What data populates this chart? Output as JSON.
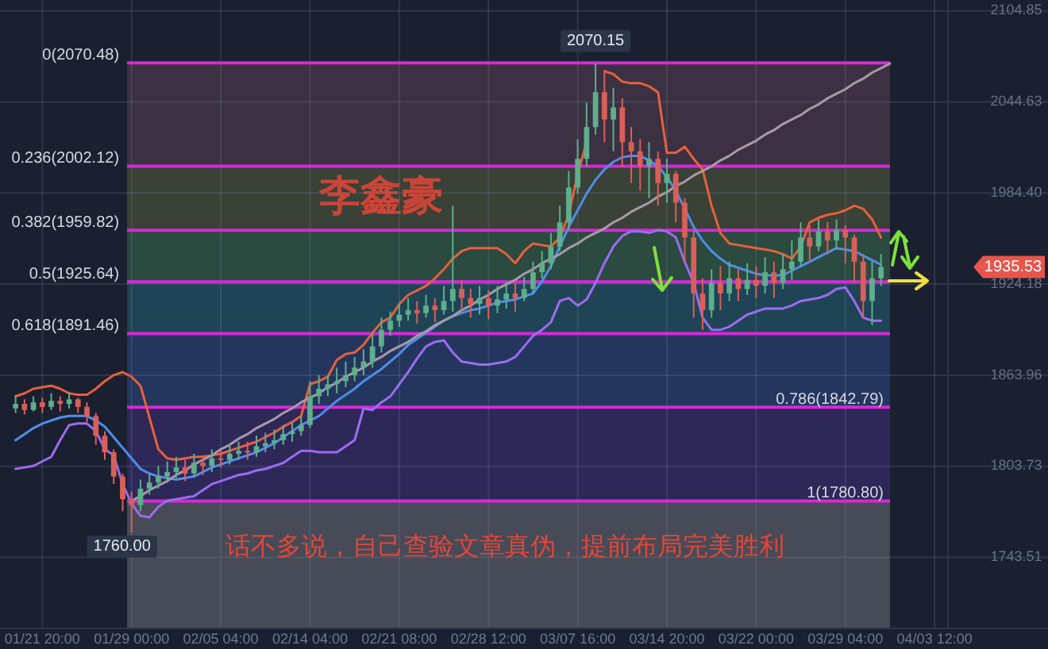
{
  "chart_data": {
    "type": "candlestick",
    "categories": [
      null,
      null,
      null,
      "01/21 20:00",
      null,
      null,
      null,
      null,
      null,
      null,
      null,
      null,
      null,
      "01/29 00:00",
      null,
      null,
      null,
      null,
      null,
      null,
      null,
      null,
      null,
      "02/05 04:00",
      null,
      null,
      null,
      null,
      null,
      null,
      null,
      null,
      null,
      "02/14 04:00",
      null,
      null,
      null,
      null,
      null,
      null,
      null,
      null,
      null,
      "02/21 08:00",
      null,
      null,
      null,
      null,
      null,
      null,
      null,
      null,
      null,
      "02/28 12:00",
      null,
      null,
      null,
      null,
      null,
      null,
      null,
      null,
      null,
      "03/07 16:00",
      null,
      null,
      null,
      null,
      null,
      null,
      null,
      null,
      null,
      "03/14 20:00",
      null,
      null,
      null,
      null,
      null,
      null,
      null,
      null,
      null,
      "03/22 00:00",
      null,
      null,
      null,
      null,
      null,
      null,
      null,
      null,
      null,
      "03/29 04:00",
      null,
      null,
      null,
      null,
      null,
      null,
      null,
      null,
      null,
      "04/03 12:00",
      null
    ],
    "ohlc": [
      [
        1842,
        1850,
        1839,
        1845
      ],
      [
        1845,
        1848,
        1838,
        1841
      ],
      [
        1841,
        1850,
        1840,
        1846
      ],
      [
        1846,
        1849,
        1839,
        1843
      ],
      [
        1843,
        1852,
        1841,
        1847
      ],
      [
        1847,
        1850,
        1840,
        1845
      ],
      [
        1845,
        1853,
        1842,
        1848
      ],
      [
        1848,
        1849,
        1839,
        1843
      ],
      [
        1843,
        1846,
        1833,
        1837
      ],
      [
        1837,
        1839,
        1818,
        1824
      ],
      [
        1824,
        1827,
        1808,
        1813
      ],
      [
        1813,
        1815,
        1792,
        1797
      ],
      [
        1797,
        1799,
        1774,
        1782
      ],
      [
        1782,
        1787,
        1760,
        1778
      ],
      [
        1778,
        1795,
        1774,
        1789
      ],
      [
        1789,
        1799,
        1785,
        1793
      ],
      [
        1793,
        1804,
        1789,
        1797
      ],
      [
        1797,
        1807,
        1793,
        1800
      ],
      [
        1800,
        1810,
        1796,
        1803
      ],
      [
        1803,
        1808,
        1794,
        1799
      ],
      [
        1799,
        1812,
        1797,
        1806
      ],
      [
        1806,
        1811,
        1798,
        1804
      ],
      [
        1804,
        1815,
        1800,
        1809
      ],
      [
        1809,
        1814,
        1803,
        1808
      ],
      [
        1808,
        1818,
        1805,
        1812
      ],
      [
        1812,
        1820,
        1808,
        1814
      ],
      [
        1814,
        1820,
        1808,
        1813
      ],
      [
        1813,
        1824,
        1810,
        1817
      ],
      [
        1817,
        1826,
        1813,
        1819
      ],
      [
        1819,
        1828,
        1815,
        1821
      ],
      [
        1821,
        1831,
        1818,
        1825
      ],
      [
        1825,
        1833,
        1820,
        1827
      ],
      [
        1827,
        1837,
        1824,
        1831
      ],
      [
        1831,
        1860,
        1829,
        1850
      ],
      [
        1850,
        1864,
        1845,
        1855
      ],
      [
        1855,
        1864,
        1850,
        1858
      ],
      [
        1858,
        1869,
        1852,
        1860
      ],
      [
        1860,
        1873,
        1856,
        1864
      ],
      [
        1864,
        1876,
        1860,
        1869
      ],
      [
        1869,
        1881,
        1864,
        1873
      ],
      [
        1873,
        1892,
        1869,
        1883
      ],
      [
        1883,
        1902,
        1879,
        1894
      ],
      [
        1894,
        1906,
        1890,
        1900
      ],
      [
        1900,
        1911,
        1896,
        1904
      ],
      [
        1904,
        1915,
        1900,
        1907
      ],
      [
        1907,
        1913,
        1898,
        1905
      ],
      [
        1905,
        1917,
        1902,
        1910
      ],
      [
        1910,
        1915,
        1899,
        1907
      ],
      [
        1907,
        1923,
        1904,
        1913
      ],
      [
        1913,
        1976,
        1906,
        1921
      ],
      [
        1921,
        1927,
        1907,
        1915
      ],
      [
        1915,
        1921,
        1902,
        1911
      ],
      [
        1911,
        1923,
        1904,
        1915
      ],
      [
        1915,
        1920,
        1901,
        1910
      ],
      [
        1910,
        1923,
        1905,
        1914
      ],
      [
        1914,
        1926,
        1908,
        1918
      ],
      [
        1918,
        1925,
        1906,
        1915
      ],
      [
        1915,
        1929,
        1913,
        1921
      ],
      [
        1921,
        1939,
        1918,
        1932
      ],
      [
        1932,
        1946,
        1928,
        1938
      ],
      [
        1938,
        1958,
        1934,
        1949
      ],
      [
        1949,
        1976,
        1946,
        1965
      ],
      [
        1965,
        1999,
        1960,
        1988
      ],
      [
        1988,
        2020,
        1984,
        2007
      ],
      [
        2007,
        2044,
        2002,
        2028
      ],
      [
        2028,
        2070.15,
        2023,
        2051
      ],
      [
        2051,
        2065,
        2018,
        2033
      ],
      [
        2033,
        2054,
        2012,
        2041
      ],
      [
        2041,
        2047,
        2002,
        2018
      ],
      [
        2018,
        2028,
        1991,
        2012
      ],
      [
        2012,
        2020,
        1986,
        2002
      ],
      [
        2002,
        2018,
        1981,
        2007
      ],
      [
        2007,
        2012,
        1976,
        1991
      ],
      [
        1991,
        2007,
        1978,
        1997
      ],
      [
        1997,
        1999,
        1965,
        1978
      ],
      [
        1978,
        1981,
        1939,
        1955
      ],
      [
        1955,
        1960,
        1902,
        1918
      ],
      [
        1918,
        1928,
        1894,
        1907
      ],
      [
        1907,
        1934,
        1902,
        1925
      ],
      [
        1925,
        1936,
        1907,
        1918
      ],
      [
        1918,
        1939,
        1913,
        1928
      ],
      [
        1928,
        1934,
        1913,
        1921
      ],
      [
        1921,
        1938,
        1917,
        1927
      ],
      [
        1927,
        1936,
        1915,
        1923
      ],
      [
        1923,
        1942,
        1918,
        1932
      ],
      [
        1932,
        1939,
        1915,
        1925
      ],
      [
        1925,
        1944,
        1921,
        1934
      ],
      [
        1934,
        1953,
        1927,
        1939
      ],
      [
        1939,
        1965,
        1936,
        1955
      ],
      [
        1955,
        1963,
        1939,
        1949
      ],
      [
        1949,
        1967,
        1946,
        1959
      ],
      [
        1959,
        1965,
        1944,
        1953
      ],
      [
        1953,
        1967,
        1947,
        1960
      ],
      [
        1960,
        1963,
        1938,
        1955
      ],
      [
        1955,
        1957,
        1925,
        1939
      ],
      [
        1939,
        1944,
        1902,
        1913
      ],
      [
        1913,
        1939,
        1897,
        1928
      ],
      [
        1928,
        1944,
        1923,
        1935.53
      ],
      null,
      null,
      null,
      null,
      null,
      null,
      null
    ],
    "colors": [
      "#5fae8c",
      "#d9605a",
      "#5fae8c",
      "#d9605a",
      "#5fae8c",
      "#d9605a",
      "#5fae8c",
      "#d9605a",
      "#d9605a",
      "#d9605a",
      "#d9605a",
      "#d9605a",
      "#d9605a",
      "#d9605a",
      "#5fae8c",
      "#5fae8c",
      "#5fae8c",
      "#5fae8c",
      "#5fae8c",
      "#d9605a",
      "#5fae8c",
      "#d9605a",
      "#5fae8c",
      "#d9605a",
      "#5fae8c",
      "#5fae8c",
      "#d9605a",
      "#5fae8c",
      "#5fae8c",
      "#5fae8c",
      "#5fae8c",
      "#5fae8c",
      "#5fae8c",
      "#5fae8c",
      "#5fae8c",
      "#5fae8c",
      "#5fae8c",
      "#5fae8c",
      "#5fae8c",
      "#5fae8c",
      "#5fae8c",
      "#5fae8c",
      "#5fae8c",
      "#5fae8c",
      "#5fae8c",
      "#d9605a",
      "#5fae8c",
      "#d9605a",
      "#5fae8c",
      "#5fae8c",
      "#d9605a",
      "#d9605a",
      "#5fae8c",
      "#d9605a",
      "#5fae8c",
      "#5fae8c",
      "#d9605a",
      "#5fae8c",
      "#5fae8c",
      "#5fae8c",
      "#5fae8c",
      "#5fae8c",
      "#5fae8c",
      "#5fae8c",
      "#5fae8c",
      "#5fae8c",
      "#d9605a",
      "#5fae8c",
      "#d9605a",
      "#d9605a",
      "#d9605a",
      "#5fae8c",
      "#d9605a",
      "#5fae8c",
      "#d9605a",
      "#d9605a",
      "#d9605a",
      "#d9605a",
      "#5fae8c",
      "#d9605a",
      "#5fae8c",
      "#d9605a",
      "#5fae8c",
      "#d9605a",
      "#5fae8c",
      "#d9605a",
      "#5fae8c",
      "#5fae8c",
      "#5fae8c",
      "#d9605a",
      "#5fae8c",
      "#d9605a",
      "#5fae8c",
      "#d9605a",
      "#d9605a",
      "#d9605a",
      "#5fae8c",
      "#5fae8c",
      null,
      null,
      null,
      null,
      null,
      null,
      null
    ],
    "series": [
      {
        "type": "line",
        "color": "#e8603c",
        "values": [
          1850,
          1852,
          1855,
          1856,
          1857,
          1855,
          1852,
          1851,
          1851,
          1855,
          1860,
          1864,
          1866,
          1863,
          1857,
          1836,
          1815,
          1809,
          1808,
          1809,
          1810,
          1810,
          1811,
          1812,
          1814,
          1816,
          1818,
          1820,
          1823,
          1826,
          1830,
          1833,
          1837,
          1858,
          1860,
          1863,
          1874,
          1878,
          1879,
          1884,
          1892,
          1899,
          1902,
          1911,
          1917,
          1920,
          1923,
          1928,
          1934,
          1941,
          1946,
          1948,
          1948,
          1948,
          1948,
          1944,
          1938,
          1946,
          1951,
          1950,
          1949,
          1955,
          1970,
          1997,
          2018,
          null,
          2065,
          2063,
          2058,
          2057,
          2057,
          2055,
          2051,
          2011,
          2011,
          2015,
          2007,
          2000,
          1976,
          1958,
          1951,
          1950,
          1949,
          1948,
          1947,
          1946,
          1944,
          1941,
          1949,
          1965,
          1968,
          1970,
          1971,
          1973,
          1976,
          1974,
          1967,
          1955,
          null,
          null,
          null,
          null,
          null,
          null,
          null
        ]
      },
      {
        "type": "line",
        "color": "#4f8ee8",
        "values": [
          1821,
          1825,
          1829,
          1832,
          1834,
          1836,
          1837,
          1837,
          1837,
          1834,
          1830,
          1823,
          1816,
          1809,
          1802,
          1799,
          1797,
          1796,
          1795,
          1796,
          1797,
          1800,
          1803,
          1805,
          1807,
          1809,
          1811,
          1813,
          1816,
          1819,
          1823,
          1827,
          1831,
          1834,
          1837,
          1842,
          1847,
          1851,
          1855,
          1860,
          1864,
          1868,
          1873,
          1878,
          1884,
          1888,
          1892,
          1896,
          1900,
          1903,
          1905,
          1907,
          1908,
          1910,
          1912,
          1913,
          1914,
          1916,
          1918,
          1926,
          1936,
          1949,
          1962,
          1973,
          1984,
          1993,
          2000,
          2005,
          2008,
          2009,
          2009,
          2006,
          2002,
          1995,
          1986,
          1974,
          1962,
          1953,
          1946,
          1941,
          1937,
          1935,
          1933,
          1931,
          1930,
          1930,
          1930,
          1933,
          1936,
          1939,
          1942,
          1945,
          1948,
          1947,
          1946,
          1943,
          1940,
          1937,
          null,
          null,
          null,
          null,
          null,
          null,
          null
        ]
      },
      {
        "type": "line",
        "color": "#9b6cf0",
        "values": [
          1802,
          1803,
          1804,
          1807,
          1810,
          1821,
          1831,
          1832,
          1832,
          1827,
          1815,
          1811,
          1792,
          1779,
          1771,
          1770,
          1777,
          1781,
          1782,
          1783,
          1784,
          1788,
          1792,
          1794,
          1796,
          1798,
          1799,
          1801,
          1802,
          1804,
          1806,
          1810,
          1814,
          1814,
          1813,
          1813,
          1813,
          1817,
          1821,
          1842,
          1841,
          1846,
          1850,
          1858,
          1866,
          1875,
          1883,
          1886,
          1887,
          1879,
          1873,
          1872,
          1871,
          1871,
          1872,
          1873,
          1876,
          1883,
          1890,
          1894,
          1899,
          1913,
          1915,
          1910,
          1914,
          1925,
          1938,
          1949,
          1956,
          1959,
          1959,
          1958,
          1960,
          1959,
          1955,
          1939,
          1925,
          1902,
          1894,
          1894,
          1896,
          1900,
          1904,
          1906,
          1908,
          1908,
          1908,
          1910,
          1913,
          1914,
          1915,
          1917,
          1921,
          1922,
          1913,
          1902,
          1900,
          1900,
          null,
          null,
          null,
          null,
          null,
          null,
          null
        ]
      },
      {
        "type": "line",
        "color": "#a99aa8",
        "values": [
          null,
          null,
          null,
          null,
          null,
          null,
          null,
          null,
          null,
          null,
          null,
          null,
          null,
          1781,
          1784,
          1788,
          1791,
          1794,
          1798,
          1801,
          1805,
          1808,
          1811,
          1815,
          1818,
          1822,
          1825,
          1829,
          1832,
          1835,
          1839,
          1842,
          1846,
          1849,
          1852,
          1856,
          1859,
          1863,
          1866,
          1869,
          1873,
          1876,
          1880,
          1883,
          1886,
          1890,
          1893,
          1897,
          1900,
          1903,
          1907,
          1910,
          1914,
          1917,
          1921,
          1924,
          1927,
          1931,
          1934,
          1938,
          1941,
          1944,
          1948,
          1951,
          1955,
          1958,
          1961,
          1965,
          1968,
          1972,
          1975,
          1978,
          1982,
          1985,
          1989,
          1992,
          1996,
          1999,
          2002,
          2006,
          2009,
          2013,
          2016,
          2019,
          2023,
          2026,
          2030,
          2033,
          2036,
          2040,
          2043,
          2047,
          2050,
          2053,
          2057,
          2060,
          2064,
          2067,
          2070,
          null,
          null,
          null,
          null,
          null,
          null
        ]
      }
    ],
    "ylim": [
      1696.6,
      2112
    ],
    "yticks": [
      2104.85,
      2044.63,
      {
        "value": 1984.4,
        "label": "1984.40"
      },
      1924.18,
      1863.96,
      1803.73,
      1743.51
    ],
    "grid": true,
    "bands": [
      {
        "axis": "y",
        "from": 2070.48,
        "to": 2002.12,
        "color": "#3b3142"
      },
      {
        "axis": "y",
        "from": 2002.12,
        "to": 1959.82,
        "color": "#3a4136"
      },
      {
        "axis": "y",
        "from": 1959.82,
        "to": 1925.64,
        "color": "#2b4a40"
      },
      {
        "axis": "y",
        "from": 1925.64,
        "to": 1891.46,
        "color": "#1f4456"
      },
      {
        "axis": "y",
        "from": 1891.46,
        "to": 1842.79,
        "color": "#24365e"
      },
      {
        "axis": "y",
        "from": 1842.79,
        "to": 1780.8,
        "color": "#2d2858"
      },
      {
        "axis": "y",
        "from": 1780.8,
        "to": 1696.6,
        "color": "#474b57"
      }
    ],
    "ref_lines": [
      {
        "axis": "y",
        "value": 2070.48,
        "label": "0(2070.48)",
        "color": "#d42ad8"
      },
      {
        "axis": "y",
        "value": 2002.12,
        "label": "0.236(2002.12)",
        "color": "#d42ad8"
      },
      {
        "axis": "y",
        "value": 1959.82,
        "label": "0.382(1959.82)",
        "color": "#d42ad8"
      },
      {
        "axis": "y",
        "value": 1925.64,
        "label": "0.5(1925.64)",
        "color": "#d42ad8"
      },
      {
        "axis": "y",
        "value": 1891.46,
        "label": "0.618(1891.46)",
        "color": "#d42ad8"
      },
      {
        "axis": "y",
        "value": 1842.79,
        "label": "0.786(1842.79)",
        "color": "#d42ad8"
      },
      {
        "axis": "y",
        "value": 1780.8,
        "label": "1(1780.80)",
        "color": "#d42ad8"
      }
    ],
    "annotations": [
      {
        "text": "2070.15",
        "y": 2070.15
      },
      "李鑫豪",
      "1935.53",
      {
        "text": "1760.00",
        "y": 1760
      },
      "话不多说，自己查验文章真伪，提前布局完美胜利"
    ]
  }
}
